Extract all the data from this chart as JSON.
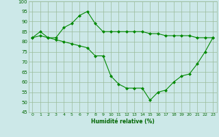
{
  "line1": {
    "x": [
      0,
      1,
      2,
      3,
      4,
      5,
      6,
      7,
      8,
      9,
      10,
      11,
      12,
      13,
      14,
      15,
      16,
      17,
      18,
      19,
      20,
      21,
      22,
      23
    ],
    "y": [
      82,
      85,
      82,
      82,
      87,
      89,
      93,
      95,
      89,
      85,
      85,
      85,
      85,
      85,
      85,
      84,
      84,
      83,
      83,
      83,
      83,
      82,
      82,
      82
    ]
  },
  "line2": {
    "x": [
      0,
      1,
      2,
      3,
      4,
      5,
      6,
      7,
      8,
      9,
      10,
      11,
      12,
      13,
      14,
      15,
      16,
      17,
      18,
      19,
      20,
      21,
      22,
      23
    ],
    "y": [
      82,
      83,
      82,
      81,
      80,
      79,
      78,
      77,
      73,
      73,
      63,
      59,
      57,
      57,
      57,
      51,
      55,
      56,
      60,
      63,
      64,
      69,
      75,
      82
    ]
  },
  "line_color": "#008800",
  "bg_color": "#cce8e8",
  "grid_color": "#99bb99",
  "xlabel": "Humidité relative (%)",
  "xlabel_color": "#006600",
  "xlim": [
    -0.5,
    23.5
  ],
  "ylim": [
    45,
    100
  ],
  "yticks": [
    45,
    50,
    55,
    60,
    65,
    70,
    75,
    80,
    85,
    90,
    95,
    100
  ],
  "xticks": [
    0,
    1,
    2,
    3,
    4,
    5,
    6,
    7,
    8,
    9,
    10,
    11,
    12,
    13,
    14,
    15,
    16,
    17,
    18,
    19,
    20,
    21,
    22,
    23
  ]
}
